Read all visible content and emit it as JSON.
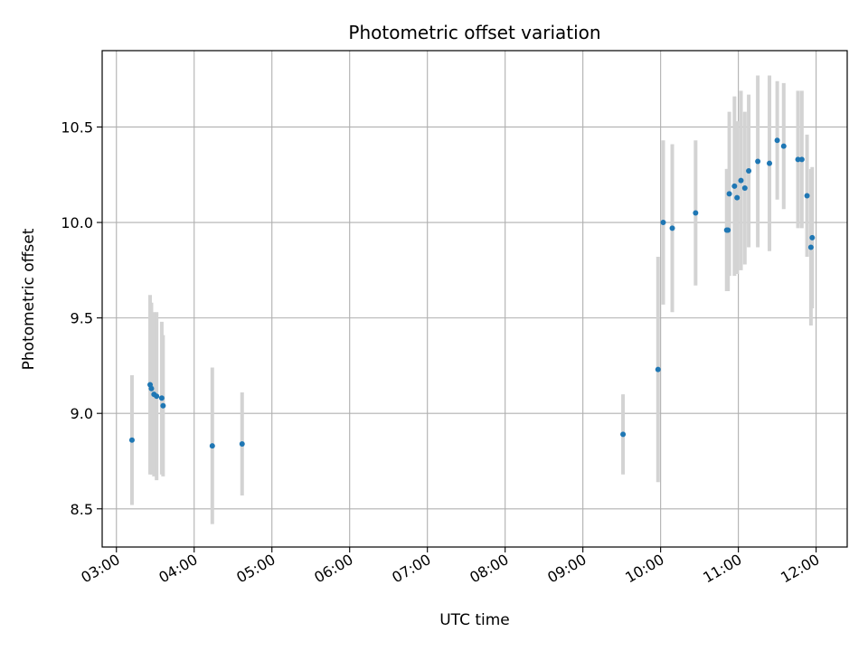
{
  "chart_data": {
    "type": "scatter",
    "title": "Photometric offset variation",
    "xlabel": "UTC time",
    "ylabel": "Photometric offset",
    "x_unit": "UTC time (HH:MM)",
    "xlim": [
      "02:49",
      "12:24"
    ],
    "ylim": [
      8.3,
      10.9
    ],
    "x_ticks": [
      "03:00",
      "04:00",
      "05:00",
      "06:00",
      "07:00",
      "08:00",
      "09:00",
      "10:00",
      "11:00",
      "12:00"
    ],
    "y_ticks": [
      "8.5",
      "9.0",
      "9.5",
      "10.0",
      "10.5"
    ],
    "y_tick_values": [
      8.5,
      9.0,
      9.5,
      10.0,
      10.5
    ],
    "grid": true,
    "marker_color": "#1f77b4",
    "errorbar_color": "#d3d3d3",
    "points": [
      {
        "x": "03:12",
        "y": 8.86,
        "err": 0.34
      },
      {
        "x": "03:26",
        "y": 9.15,
        "err": 0.47
      },
      {
        "x": "03:27",
        "y": 9.13,
        "err": 0.45
      },
      {
        "x": "03:29",
        "y": 9.1,
        "err": 0.43
      },
      {
        "x": "03:31",
        "y": 9.09,
        "err": 0.44
      },
      {
        "x": "03:35",
        "y": 9.08,
        "err": 0.4
      },
      {
        "x": "03:36",
        "y": 9.04,
        "err": 0.37
      },
      {
        "x": "04:14",
        "y": 8.83,
        "err": 0.41
      },
      {
        "x": "04:37",
        "y": 8.84,
        "err": 0.27
      },
      {
        "x": "09:31",
        "y": 8.89,
        "err": 0.21
      },
      {
        "x": "09:58",
        "y": 9.23,
        "err": 0.59
      },
      {
        "x": "10:02",
        "y": 10.0,
        "err": 0.43
      },
      {
        "x": "10:09",
        "y": 9.97,
        "err": 0.44
      },
      {
        "x": "10:27",
        "y": 10.05,
        "err": 0.38
      },
      {
        "x": "10:51",
        "y": 9.96,
        "err": 0.32
      },
      {
        "x": "10:52",
        "y": 9.96,
        "err": 0.32
      },
      {
        "x": "10:53",
        "y": 10.15,
        "err": 0.43
      },
      {
        "x": "10:57",
        "y": 10.19,
        "err": 0.47
      },
      {
        "x": "10:59",
        "y": 10.13,
        "err": 0.4
      },
      {
        "x": "11:02",
        "y": 10.22,
        "err": 0.47
      },
      {
        "x": "11:05",
        "y": 10.18,
        "err": 0.4
      },
      {
        "x": "11:08",
        "y": 10.27,
        "err": 0.4
      },
      {
        "x": "11:15",
        "y": 10.32,
        "err": 0.45
      },
      {
        "x": "11:24",
        "y": 10.31,
        "err": 0.46
      },
      {
        "x": "11:30",
        "y": 10.43,
        "err": 0.31
      },
      {
        "x": "11:35",
        "y": 10.4,
        "err": 0.33
      },
      {
        "x": "11:46",
        "y": 10.33,
        "err": 0.36
      },
      {
        "x": "11:49",
        "y": 10.33,
        "err": 0.36
      },
      {
        "x": "11:53",
        "y": 10.14,
        "err": 0.32
      },
      {
        "x": "11:56",
        "y": 9.87,
        "err": 0.41
      },
      {
        "x": "11:57",
        "y": 9.92,
        "err": 0.37
      }
    ]
  }
}
